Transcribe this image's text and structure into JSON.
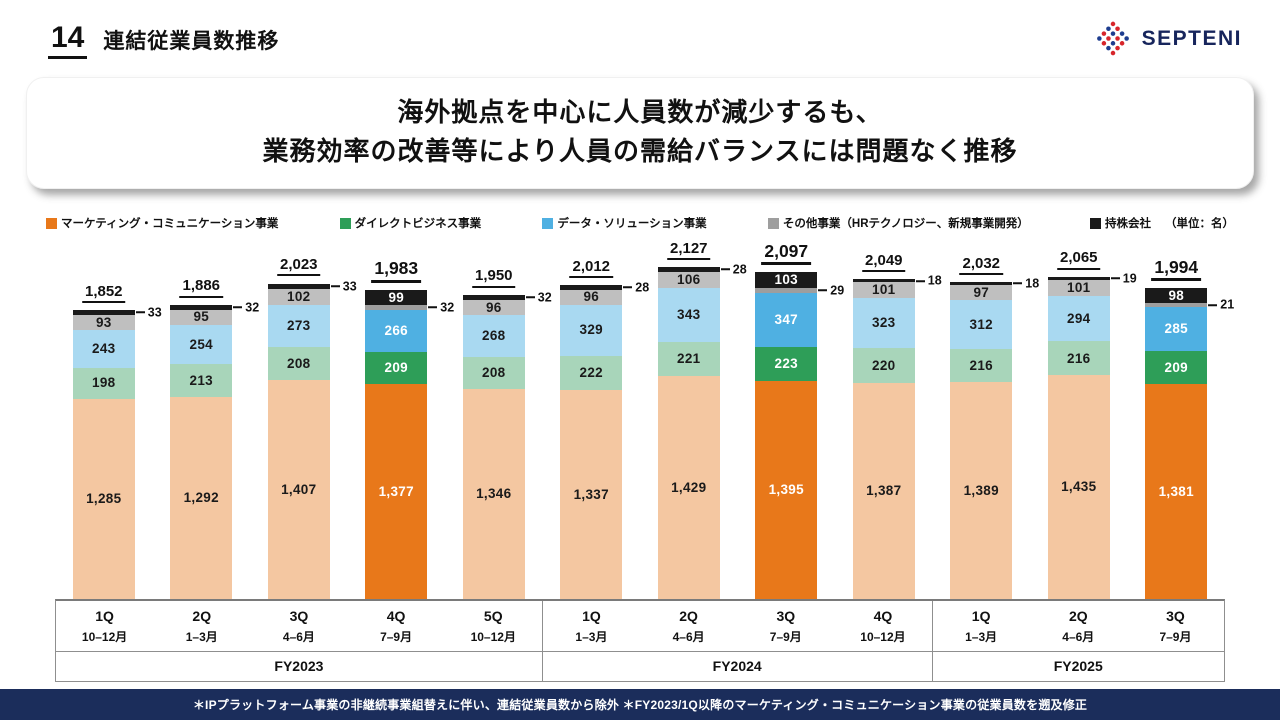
{
  "page": {
    "number": "14",
    "title": "連結従業員数推移"
  },
  "logo": {
    "text": "SEPTENI"
  },
  "headline": {
    "line1": "海外拠点を中心に人員数が減少するも、",
    "line2": "業務効率の改善等により人員の需給バランスには問題なく推移"
  },
  "legend": {
    "items": [
      {
        "label": "マーケティング・コミュニケーション事業",
        "color": "#E8781A"
      },
      {
        "label": "ダイレクトビジネス事業",
        "color": "#2E9E58"
      },
      {
        "label": "データ・ソリューション事業",
        "color": "#4FB0E2"
      },
      {
        "label": "その他事業（HRテクノロジー、新規事業開発）",
        "color": "#9E9E9E"
      },
      {
        "label": "持株会社",
        "color": "#1A1A1A"
      }
    ],
    "unit_note": "（単位：名）"
  },
  "colors": {
    "marketing": "#E8781A",
    "marketing_muted": "#F4C7A1",
    "direct": "#2E9E58",
    "direct_muted": "#A8D5BA",
    "data": "#4FB0E2",
    "data_muted": "#A9D9F1",
    "other": "#9E9E9E",
    "other_muted": "#BFBFBF",
    "holding": "#1A1A1A",
    "footer_bg": "#1B2D5B",
    "logo_navy": "#17255C",
    "logo_red": "#D7252B",
    "logo_blue": "#1E3D8F"
  },
  "chart_data": {
    "type": "bar",
    "stacked": true,
    "unit": "名",
    "series_order_bottom_to_top": [
      "marketing",
      "direct",
      "data",
      "other",
      "holding"
    ],
    "series_names": {
      "marketing": "マーケティング・コミュニケーション事業",
      "direct": "ダイレクトビジネス事業",
      "data": "データ・ソリューション事業",
      "other": "その他事業（HRテクノロジー、新規事業開発）",
      "holding": "持株会社"
    },
    "bars": [
      {
        "quarter": "1Q",
        "months": "10–12月",
        "total": 1852,
        "total_label": "1,852",
        "highlight": false,
        "values": {
          "marketing": 1285,
          "direct": 198,
          "data": 243,
          "other": 93,
          "holding": 33
        },
        "segment_labels": {
          "marketing": "1,285",
          "direct": "198",
          "data": "243",
          "other": "93"
        },
        "callout": {
          "segment": "holding",
          "label": "33"
        }
      },
      {
        "quarter": "2Q",
        "months": "1–3月",
        "total": 1886,
        "total_label": "1,886",
        "highlight": false,
        "values": {
          "marketing": 1292,
          "direct": 213,
          "data": 254,
          "other": 95,
          "holding": 32
        },
        "segment_labels": {
          "marketing": "1,292",
          "direct": "213",
          "data": "254",
          "other": "95"
        },
        "callout": {
          "segment": "holding",
          "label": "32"
        }
      },
      {
        "quarter": "3Q",
        "months": "4–6月",
        "total": 2023,
        "total_label": "2,023",
        "highlight": false,
        "values": {
          "marketing": 1407,
          "direct": 208,
          "data": 273,
          "other": 102,
          "holding": 33
        },
        "segment_labels": {
          "marketing": "1,407",
          "direct": "208",
          "data": "273",
          "other": "102"
        },
        "callout": {
          "segment": "holding",
          "label": "33"
        }
      },
      {
        "quarter": "4Q",
        "months": "7–9月",
        "total": 1983,
        "total_label": "1,983",
        "highlight": true,
        "values": {
          "marketing": 1377,
          "direct": 209,
          "data": 266,
          "other": 32,
          "holding": 99
        },
        "segment_labels": {
          "marketing": "1,377",
          "direct": "209",
          "data": "266",
          "holding": "99"
        },
        "callout": {
          "segment": "other",
          "label": "32"
        }
      },
      {
        "quarter": "5Q",
        "months": "10–12月",
        "total": 1950,
        "total_label": "1,950",
        "highlight": false,
        "values": {
          "marketing": 1346,
          "direct": 208,
          "data": 268,
          "other": 96,
          "holding": 32
        },
        "segment_labels": {
          "marketing": "1,346",
          "direct": "208",
          "data": "268",
          "other": "96"
        },
        "callout": {
          "segment": "holding",
          "label": "32"
        }
      },
      {
        "quarter": "1Q",
        "months": "1–3月",
        "total": 2012,
        "total_label": "2,012",
        "highlight": false,
        "values": {
          "marketing": 1337,
          "direct": 222,
          "data": 329,
          "other": 96,
          "holding": 28
        },
        "segment_labels": {
          "marketing": "1,337",
          "direct": "222",
          "data": "329",
          "other": "96"
        },
        "callout": {
          "segment": "holding",
          "label": "28"
        }
      },
      {
        "quarter": "2Q",
        "months": "4–6月",
        "total": 2127,
        "total_label": "2,127",
        "highlight": false,
        "values": {
          "marketing": 1429,
          "direct": 221,
          "data": 343,
          "other": 106,
          "holding": 28
        },
        "segment_labels": {
          "marketing": "1,429",
          "direct": "221",
          "data": "343",
          "other": "106"
        },
        "callout": {
          "segment": "holding",
          "label": "28"
        }
      },
      {
        "quarter": "3Q",
        "months": "7–9月",
        "total": 2097,
        "total_label": "2,097",
        "highlight": true,
        "values": {
          "marketing": 1395,
          "direct": 223,
          "data": 347,
          "other": 29,
          "holding": 103
        },
        "segment_labels": {
          "marketing": "1,395",
          "direct": "223",
          "data": "347",
          "holding": "103"
        },
        "callout": {
          "segment": "other",
          "label": "29"
        }
      },
      {
        "quarter": "4Q",
        "months": "10–12月",
        "total": 2049,
        "total_label": "2,049",
        "highlight": false,
        "values": {
          "marketing": 1387,
          "direct": 220,
          "data": 323,
          "other": 101,
          "holding": 18
        },
        "segment_labels": {
          "marketing": "1,387",
          "direct": "220",
          "data": "323",
          "other": "101"
        },
        "callout": {
          "segment": "holding",
          "label": "18"
        }
      },
      {
        "quarter": "1Q",
        "months": "1–3月",
        "total": 2032,
        "total_label": "2,032",
        "highlight": false,
        "values": {
          "marketing": 1389,
          "direct": 216,
          "data": 312,
          "other": 97,
          "holding": 18
        },
        "segment_labels": {
          "marketing": "1,389",
          "direct": "216",
          "data": "312",
          "other": "97"
        },
        "callout": {
          "segment": "holding",
          "label": "18"
        }
      },
      {
        "quarter": "2Q",
        "months": "4–6月",
        "total": 2065,
        "total_label": "2,065",
        "highlight": false,
        "values": {
          "marketing": 1435,
          "direct": 216,
          "data": 294,
          "other": 101,
          "holding": 19
        },
        "segment_labels": {
          "marketing": "1,435",
          "direct": "216",
          "data": "294",
          "other": "101"
        },
        "callout": {
          "segment": "holding",
          "label": "19"
        }
      },
      {
        "quarter": "3Q",
        "months": "7–9月",
        "total": 1994,
        "total_label": "1,994",
        "highlight": true,
        "values": {
          "marketing": 1381,
          "direct": 209,
          "data": 285,
          "other": 21,
          "holding": 98
        },
        "segment_labels": {
          "marketing": "1,381",
          "direct": "209",
          "data": "285",
          "holding": "98"
        },
        "callout": {
          "segment": "other",
          "label": "21"
        }
      }
    ],
    "groups": [
      {
        "label": "FY2023",
        "span": 5
      },
      {
        "label": "FY2024",
        "span": 4
      },
      {
        "label": "FY2025",
        "span": 3
      }
    ]
  },
  "footer": {
    "text": "＊IPプラットフォーム事業の非継続事業組替えに伴い、連結従業員数から除外 ＊FY2023/1Q以降のマーケティング・コミュニケーション事業の従業員数を遡及修正"
  }
}
